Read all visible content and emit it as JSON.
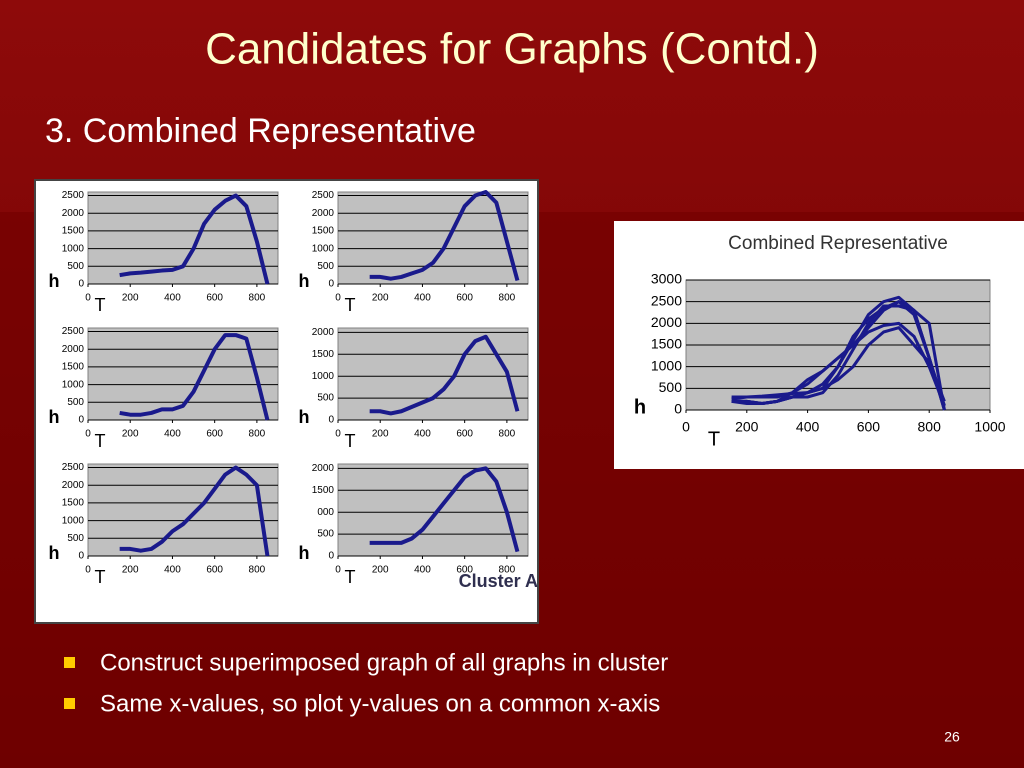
{
  "title": "Candidates for Graphs (Contd.)",
  "subtitle": "3. Combined Representative",
  "bullets": [
    "Construct superimposed graph of all graphs in cluster",
    "Same x-values, so plot y-values on a common x-axis"
  ],
  "page_number": "26",
  "chart_data": [
    {
      "type": "line",
      "xlabel": "T",
      "ylabel": "h",
      "xlim": [
        0,
        900
      ],
      "ylim": [
        0,
        2600
      ],
      "xticks": [
        0,
        200,
        400,
        600,
        800
      ],
      "yticks": [
        0,
        500,
        1000,
        1500,
        2000,
        2500
      ],
      "x": [
        150,
        200,
        250,
        300,
        350,
        400,
        450,
        500,
        550,
        600,
        650,
        700,
        750,
        800,
        850
      ],
      "series": [
        {
          "color": "#1a1a8c",
          "values": [
            250,
            300,
            320,
            350,
            380,
            400,
            500,
            1000,
            1700,
            2100,
            2350,
            2500,
            2200,
            1200,
            0
          ]
        }
      ]
    },
    {
      "type": "line",
      "xlabel": "T",
      "ylabel": "h",
      "xlim": [
        0,
        900
      ],
      "ylim": [
        0,
        2600
      ],
      "xticks": [
        0,
        200,
        400,
        600,
        800
      ],
      "yticks": [
        0,
        500,
        1000,
        1500,
        2000,
        2500
      ],
      "x": [
        150,
        200,
        250,
        300,
        350,
        400,
        450,
        500,
        550,
        600,
        650,
        700,
        750,
        800,
        850
      ],
      "series": [
        {
          "color": "#1a1a8c",
          "values": [
            200,
            200,
            150,
            200,
            300,
            400,
            600,
            1000,
            1600,
            2200,
            2500,
            2600,
            2300,
            1200,
            100
          ]
        }
      ]
    },
    {
      "type": "line",
      "xlabel": "T",
      "ylabel": "h",
      "xlim": [
        0,
        900
      ],
      "ylim": [
        0,
        2600
      ],
      "xticks": [
        0,
        200,
        400,
        600,
        800
      ],
      "yticks": [
        0,
        500,
        1000,
        1500,
        2000,
        2500
      ],
      "x": [
        150,
        200,
        250,
        300,
        350,
        400,
        450,
        500,
        550,
        600,
        650,
        700,
        750,
        800,
        850
      ],
      "series": [
        {
          "color": "#1a1a8c",
          "values": [
            200,
            150,
            150,
            200,
            300,
            300,
            400,
            800,
            1400,
            2000,
            2400,
            2400,
            2300,
            1200,
            0
          ]
        }
      ]
    },
    {
      "type": "line",
      "xlabel": "T",
      "ylabel": "h",
      "xlim": [
        0,
        900
      ],
      "ylim": [
        0,
        2100
      ],
      "xticks": [
        0,
        200,
        400,
        600,
        800
      ],
      "yticks": [
        0,
        500,
        1000,
        1500,
        2000
      ],
      "x": [
        150,
        200,
        250,
        300,
        350,
        400,
        450,
        500,
        550,
        600,
        650,
        700,
        750,
        800,
        850
      ],
      "series": [
        {
          "color": "#1a1a8c",
          "values": [
            200,
            200,
            150,
            200,
            300,
            400,
            500,
            700,
            1000,
            1500,
            1800,
            1900,
            1500,
            1100,
            200
          ]
        }
      ]
    },
    {
      "type": "line",
      "xlabel": "T",
      "ylabel": "h",
      "xlim": [
        0,
        900
      ],
      "ylim": [
        0,
        2600
      ],
      "xticks": [
        0,
        200,
        400,
        600,
        800
      ],
      "yticks": [
        0,
        500,
        1000,
        1500,
        2000,
        2500
      ],
      "x": [
        150,
        200,
        250,
        300,
        350,
        400,
        450,
        500,
        550,
        600,
        650,
        700,
        750,
        800,
        850
      ],
      "series": [
        {
          "color": "#1a1a8c",
          "values": [
            200,
            200,
            150,
            200,
            400,
            700,
            900,
            1200,
            1500,
            1900,
            2300,
            2500,
            2300,
            2000,
            0
          ]
        }
      ]
    },
    {
      "type": "line",
      "xlabel": "T",
      "ylabel": "h",
      "annotation": "Cluster A",
      "xlim": [
        0,
        900
      ],
      "ylim": [
        0,
        2100
      ],
      "xticks": [
        0,
        200,
        400,
        600,
        800
      ],
      "yticks": [
        0,
        500,
        {
          "value": 1000,
          "label": "000"
        },
        1500,
        2000
      ],
      "x": [
        150,
        200,
        250,
        300,
        350,
        400,
        450,
        500,
        550,
        600,
        650,
        700,
        750,
        800,
        850
      ],
      "series": [
        {
          "color": "#1a1a8c",
          "values": [
            300,
            300,
            300,
            300,
            400,
            600,
            900,
            1200,
            1500,
            1800,
            1950,
            2000,
            1700,
            1000,
            100
          ]
        }
      ]
    },
    {
      "type": "line",
      "title": "Combined Representative",
      "xlabel": "T",
      "ylabel": "h",
      "xlim": [
        0,
        1000
      ],
      "ylim": [
        0,
        3000
      ],
      "xticks": [
        0,
        200,
        400,
        600,
        800,
        1000
      ],
      "yticks": [
        0,
        500,
        1000,
        1500,
        2000,
        2500,
        3000
      ],
      "x": [
        150,
        200,
        250,
        300,
        350,
        400,
        450,
        500,
        550,
        600,
        650,
        700,
        750,
        800,
        850
      ],
      "series": [
        {
          "color": "#1a1a8c",
          "values": [
            250,
            300,
            320,
            350,
            380,
            400,
            500,
            1000,
            1700,
            2100,
            2350,
            2500,
            2200,
            1200,
            0
          ]
        },
        {
          "color": "#1a1a8c",
          "values": [
            200,
            200,
            150,
            200,
            300,
            400,
            600,
            1000,
            1600,
            2200,
            2500,
            2600,
            2300,
            1200,
            100
          ]
        },
        {
          "color": "#1a1a8c",
          "values": [
            200,
            150,
            150,
            200,
            300,
            300,
            400,
            800,
            1400,
            2000,
            2400,
            2400,
            2300,
            1200,
            0
          ]
        },
        {
          "color": "#1a1a8c",
          "values": [
            200,
            200,
            150,
            200,
            300,
            400,
            500,
            700,
            1000,
            1500,
            1800,
            1900,
            1500,
            1100,
            200
          ]
        },
        {
          "color": "#1a1a8c",
          "values": [
            200,
            200,
            150,
            200,
            400,
            700,
            900,
            1200,
            1500,
            1900,
            2300,
            2500,
            2300,
            2000,
            0
          ]
        },
        {
          "color": "#1a1a8c",
          "values": [
            300,
            300,
            300,
            300,
            400,
            600,
            900,
            1200,
            1500,
            1800,
            1950,
            2000,
            1700,
            1000,
            100
          ]
        }
      ]
    }
  ]
}
